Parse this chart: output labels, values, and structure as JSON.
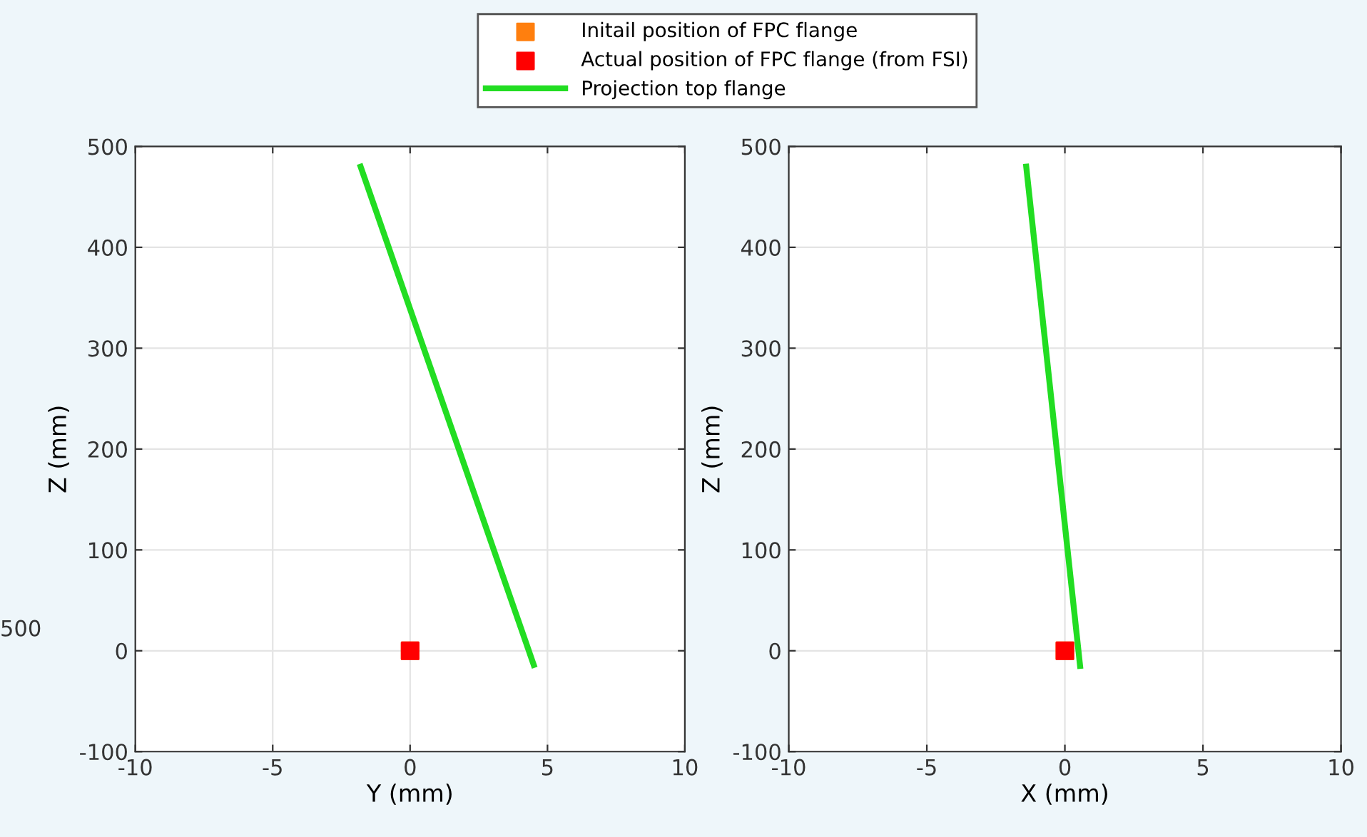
{
  "chart_data": [
    {
      "type": "line",
      "xlabel": "Y (mm)",
      "ylabel": "Z (mm)",
      "xlim": [
        -10,
        10
      ],
      "ylim": [
        -100,
        500
      ],
      "xticks": [
        -10,
        -5,
        0,
        5,
        10
      ],
      "yticks": [
        -100,
        0,
        100,
        200,
        300,
        400,
        500
      ],
      "grid": true,
      "legend": "top",
      "annotations": [
        "500"
      ],
      "series": [
        {
          "name": "Initail position of FPC flange",
          "type": "scatter",
          "marker": "square",
          "color": "#ff7f0e",
          "x": [
            0
          ],
          "values": [
            0
          ]
        },
        {
          "name": "Actual position of FPC flange (from FSI)",
          "type": "scatter",
          "marker": "square",
          "color": "#ff0000",
          "x": [
            0
          ],
          "values": [
            0
          ]
        },
        {
          "name": "Projection top flange",
          "color": "#22dd22",
          "x": [
            -1.8,
            4.5
          ],
          "values": [
            480,
            -14
          ]
        }
      ]
    },
    {
      "type": "line",
      "xlabel": "X (mm)",
      "ylabel": "Z (mm)",
      "xlim": [
        -10,
        10
      ],
      "ylim": [
        -100,
        500
      ],
      "xticks": [
        -10,
        -5,
        0,
        5,
        10
      ],
      "yticks": [
        -100,
        0,
        100,
        200,
        300,
        400,
        500
      ],
      "grid": true,
      "series": [
        {
          "type": "scatter",
          "marker": "square",
          "color": "#ff7f0e",
          "x": [
            0
          ],
          "values": [
            0
          ]
        },
        {
          "type": "scatter",
          "marker": "square",
          "color": "#ff0000",
          "x": [
            0
          ],
          "values": [
            0
          ]
        },
        {
          "color": "#22dd22",
          "x": [
            -1.4,
            0.55
          ],
          "values": [
            480,
            -15
          ]
        }
      ]
    }
  ]
}
